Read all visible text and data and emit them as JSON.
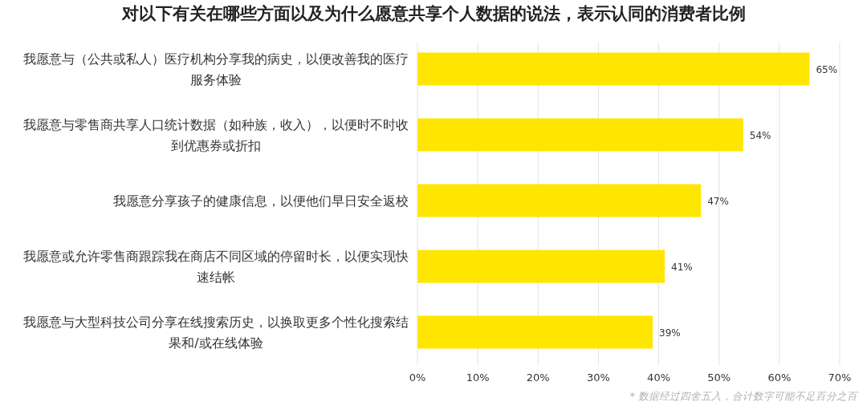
{
  "chart_data": {
    "type": "bar",
    "orientation": "horizontal",
    "title": "对以下有关在哪些方面以及为什么愿意共享个人数据的说法，表示认同的消费者比例",
    "categories": [
      "我愿意与（公共或私人）医疗机构分享我的病史，以便改善我的医疗服务体验",
      "我愿意与零售商共享人口统计数据（如种族，收入），以便时不时收到优惠券或折扣",
      "我愿意分享孩子的健康信息，以便他们早日安全返校",
      "我愿意或允许零售商跟踪我在商店不同区域的停留时长，以便实现快速结帐",
      "我愿意与大型科技公司分享在线搜索历史，以换取更多个性化搜索结果和/或在线体验"
    ],
    "values": [
      65,
      54,
      47,
      41,
      39
    ],
    "value_labels": [
      "65%",
      "54%",
      "47%",
      "41%",
      "39%"
    ],
    "color": "#ffe600",
    "xlim": [
      0,
      70
    ],
    "xticks": [
      {
        "value": 0,
        "label": "0%"
      },
      {
        "value": 10,
        "label": "10%"
      },
      {
        "value": 20,
        "label": "20%"
      },
      {
        "value": 30,
        "label": "30%"
      },
      {
        "value": 40,
        "label": "40%"
      },
      {
        "value": 50,
        "label": "50%"
      },
      {
        "value": 60,
        "label": "60%"
      },
      {
        "value": 70,
        "label": "70%"
      }
    ],
    "grid": "x",
    "annotations": [
      "* 数据经过四舍五入，合计数字可能不足百分之百"
    ]
  }
}
